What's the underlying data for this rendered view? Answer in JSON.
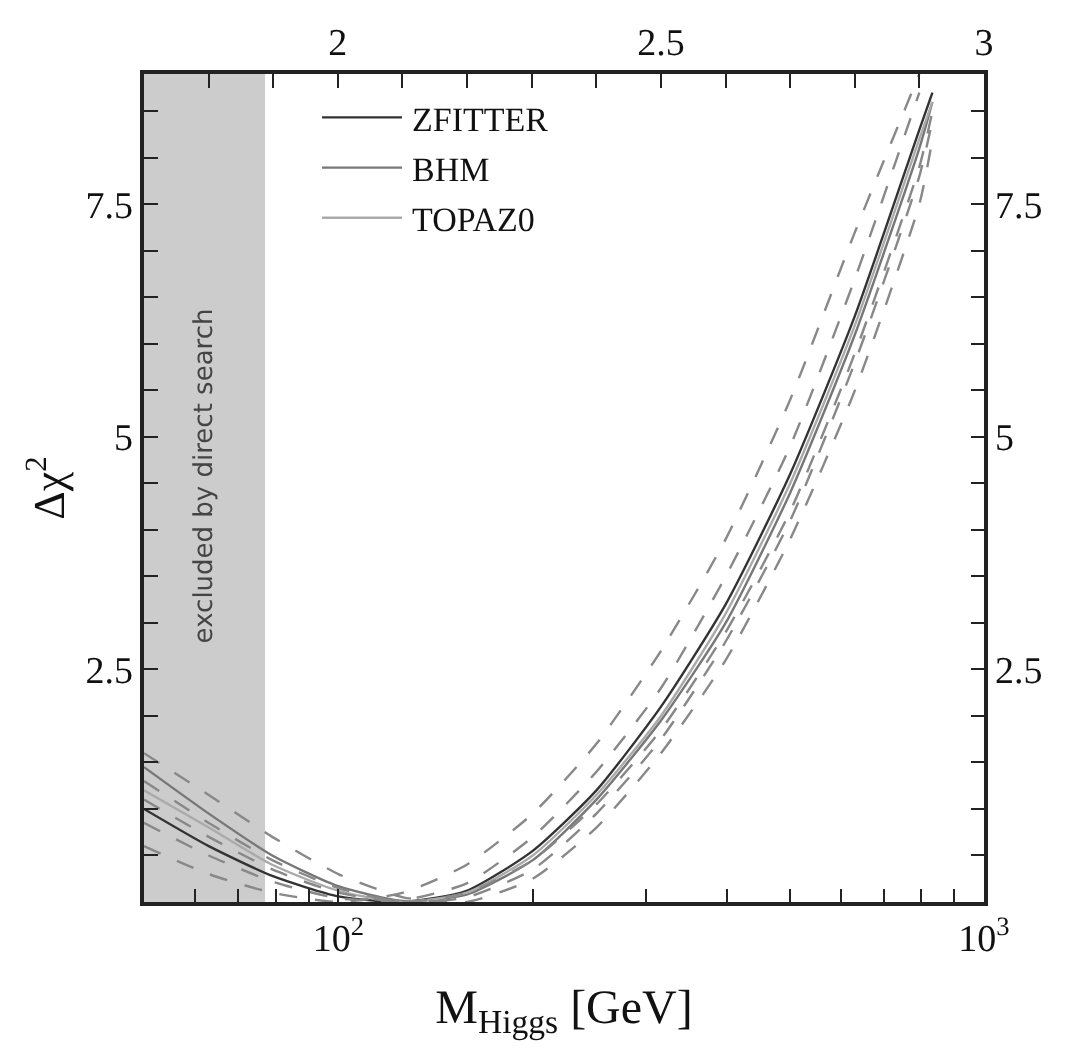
{
  "chart_data": {
    "type": "line",
    "xlabel": "M$_{Higgs}$ [GeV]",
    "ylabel": "Δχ$^{2}$",
    "x": [
      50,
      63,
      79,
      100,
      126,
      158,
      200,
      251,
      316,
      398,
      501,
      631,
      794,
      832
    ],
    "series": [
      {
        "name": "ZFITTER",
        "color": "#333333",
        "line_style": "solid",
        "values": [
          1.0,
          0.6,
          0.28,
          0.06,
          0.0,
          0.12,
          0.55,
          1.2,
          2.1,
          3.2,
          4.6,
          6.3,
          8.3,
          8.7
        ]
      },
      {
        "name": "BHM",
        "color": "#777777",
        "line_style": "solid",
        "values": [
          1.45,
          0.95,
          0.5,
          0.17,
          0.01,
          0.08,
          0.45,
          1.1,
          1.95,
          3.0,
          4.4,
          6.1,
          8.1,
          8.6
        ]
      },
      {
        "name": "TOPAZ0",
        "color": "#aaaaaa",
        "line_style": "solid",
        "values": [
          1.2,
          0.8,
          0.4,
          0.12,
          0.0,
          0.1,
          0.5,
          1.15,
          2.0,
          3.1,
          4.5,
          6.2,
          8.2,
          8.6
        ]
      },
      {
        "color": "#888888",
        "line_style": "dashed",
        "values": [
          1.6,
          1.15,
          0.7,
          0.3,
          0.05,
          0.0,
          0.25,
          0.8,
          1.6,
          2.6,
          3.9,
          5.5,
          7.5,
          8.2
        ]
      },
      {
        "color": "#888888",
        "line_style": "dashed",
        "values": [
          0.6,
          0.3,
          0.1,
          0.0,
          0.1,
          0.4,
          0.95,
          1.7,
          2.7,
          3.9,
          5.4,
          7.2,
          8.9,
          null
        ]
      },
      {
        "color": "#888888",
        "line_style": "dashed",
        "values": [
          1.3,
          0.85,
          0.45,
          0.15,
          0.0,
          0.05,
          0.35,
          0.95,
          1.75,
          2.8,
          4.1,
          5.8,
          7.8,
          8.4
        ]
      },
      {
        "color": "#888888",
        "line_style": "dashed",
        "values": [
          0.85,
          0.5,
          0.22,
          0.04,
          0.02,
          0.2,
          0.7,
          1.4,
          2.3,
          3.5,
          4.9,
          6.7,
          8.7,
          null
        ]
      },
      {
        "color": "#888888",
        "line_style": "dashed",
        "values": [
          1.1,
          0.7,
          0.35,
          0.1,
          0.0,
          0.1,
          0.45,
          1.05,
          1.85,
          2.9,
          4.2,
          5.9,
          7.9,
          8.5
        ]
      }
    ],
    "log": "x",
    "xlim": [
      50,
      1000
    ],
    "xticks": [
      {
        "value": 50,
        "label": null
      },
      {
        "value": 60,
        "label": null
      },
      {
        "value": 70,
        "label": null
      },
      {
        "value": 80,
        "label": null
      },
      {
        "value": 90,
        "label": null
      },
      {
        "value": 100,
        "label": "10$^{2}$"
      },
      {
        "value": 200,
        "label": null
      },
      {
        "value": 300,
        "label": null
      },
      {
        "value": 400,
        "label": null
      },
      {
        "value": 500,
        "label": null
      },
      {
        "value": 600,
        "label": null
      },
      {
        "value": 700,
        "label": null
      },
      {
        "value": 800,
        "label": null
      },
      {
        "value": 900,
        "label": null
      },
      {
        "value": 1000,
        "label": "10$^{3}$"
      }
    ],
    "x2lim": [
      1.7,
      3
    ],
    "x2ticks": [
      {
        "value": 1.8,
        "label": null
      },
      {
        "value": 1.9,
        "label": null
      },
      2,
      {
        "value": 2.1,
        "label": null
      },
      {
        "value": 2.2,
        "label": null
      },
      {
        "value": 2.3,
        "label": null
      },
      {
        "value": 2.4,
        "label": null
      },
      2.5,
      {
        "value": 2.6,
        "label": null
      },
      {
        "value": 2.7,
        "label": null
      },
      {
        "value": 2.8,
        "label": null
      },
      {
        "value": 2.9,
        "label": null
      },
      3
    ],
    "ylim": [
      0,
      8.9
    ],
    "yticks": [
      {
        "value": 0.5,
        "label": null
      },
      {
        "value": 1,
        "label": null
      },
      {
        "value": 1.5,
        "label": null
      },
      {
        "value": 2,
        "label": null
      },
      2.5,
      {
        "value": 3,
        "label": null
      },
      {
        "value": 3.5,
        "label": null
      },
      {
        "value": 4,
        "label": null
      },
      {
        "value": 4.5,
        "label": null
      },
      5,
      {
        "value": 5.5,
        "label": null
      },
      {
        "value": 6,
        "label": null
      },
      {
        "value": 6.5,
        "label": null
      },
      {
        "value": 7,
        "label": null
      },
      7.5,
      {
        "value": 8,
        "label": null
      },
      {
        "value": 8.5,
        "label": null
      }
    ],
    "y2lim": [
      0,
      8.9
    ],
    "y2ticks": [
      {
        "value": 0.5,
        "label": null
      },
      {
        "value": 1,
        "label": null
      },
      {
        "value": 1.5,
        "label": null
      },
      {
        "value": 2,
        "label": null
      },
      2.5,
      {
        "value": 3,
        "label": null
      },
      {
        "value": 3.5,
        "label": null
      },
      {
        "value": 4,
        "label": null
      },
      {
        "value": 4.5,
        "label": null
      },
      5,
      {
        "value": 5.5,
        "label": null
      },
      {
        "value": 6,
        "label": null
      },
      {
        "value": 6.5,
        "label": null
      },
      {
        "value": 7,
        "label": null
      },
      7.5,
      {
        "value": 8,
        "label": null
      },
      {
        "value": 8.5,
        "label": null
      }
    ],
    "bands": [
      {
        "axis": "x",
        "from": 50,
        "to": 77,
        "label": "excluded by direct search",
        "color": "#cccccc"
      }
    ],
    "grid": false,
    "legend": "top left"
  }
}
